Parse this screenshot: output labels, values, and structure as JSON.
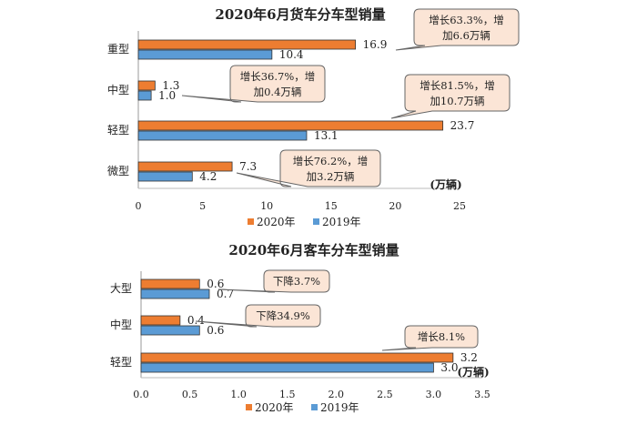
{
  "chart_data": [
    {
      "type": "bar",
      "orientation": "horizontal",
      "title": "2020年6月货车分车型销量",
      "unit": "(万辆)",
      "categories": [
        "重型",
        "中型",
        "轻型",
        "微型"
      ],
      "series": [
        {
          "name": "2020年",
          "color": "#ED7D31",
          "values": [
            16.9,
            1.3,
            23.7,
            7.3
          ],
          "labels": [
            "16.9",
            "1.3",
            "23.7",
            "7.3"
          ]
        },
        {
          "name": "2019年",
          "color": "#5B9BD5",
          "values": [
            10.4,
            1.0,
            13.1,
            4.2
          ],
          "labels": [
            "10.4",
            "1.0",
            "13.1",
            "4.2"
          ]
        }
      ],
      "xlim": [
        0,
        25
      ],
      "xticks": [
        "0",
        "5",
        "10",
        "15",
        "20",
        "25"
      ],
      "annotations": [
        {
          "line1": "增长63.3%，增",
          "line2": "加6.6万辆",
          "category": "重型"
        },
        {
          "line1": "增长36.7%，增",
          "line2": "加0.4万辆",
          "category": "中型"
        },
        {
          "line1": "增长81.5%，增",
          "line2": "加10.7万辆",
          "category": "轻型"
        },
        {
          "line1": "增长76.2%，增",
          "line2": "加3.2万辆",
          "category": "微型"
        }
      ]
    },
    {
      "type": "bar",
      "orientation": "horizontal",
      "title": "2020年6月客车分车型销量",
      "unit": "(万辆)",
      "categories": [
        "大型",
        "中型",
        "轻型"
      ],
      "series": [
        {
          "name": "2020年",
          "color": "#ED7D31",
          "values": [
            0.6,
            0.4,
            3.2
          ],
          "labels": [
            "0.6",
            "0.4",
            "3.2"
          ]
        },
        {
          "name": "2019年",
          "color": "#5B9BD5",
          "values": [
            0.7,
            0.6,
            3.0
          ],
          "labels": [
            "0.7",
            "0.6",
            "3.0"
          ]
        }
      ],
      "xlim": [
        0,
        3.5
      ],
      "xticks": [
        "0.0",
        "0.5",
        "1.0",
        "1.5",
        "2.0",
        "2.5",
        "3.0",
        "3.5"
      ],
      "annotations": [
        {
          "line1": "下降3.7%",
          "line2": "",
          "category": "大型"
        },
        {
          "line1": "下降34.9%",
          "line2": "",
          "category": "中型"
        },
        {
          "line1": "增长8.1%",
          "line2": "",
          "category": "轻型"
        }
      ]
    }
  ]
}
